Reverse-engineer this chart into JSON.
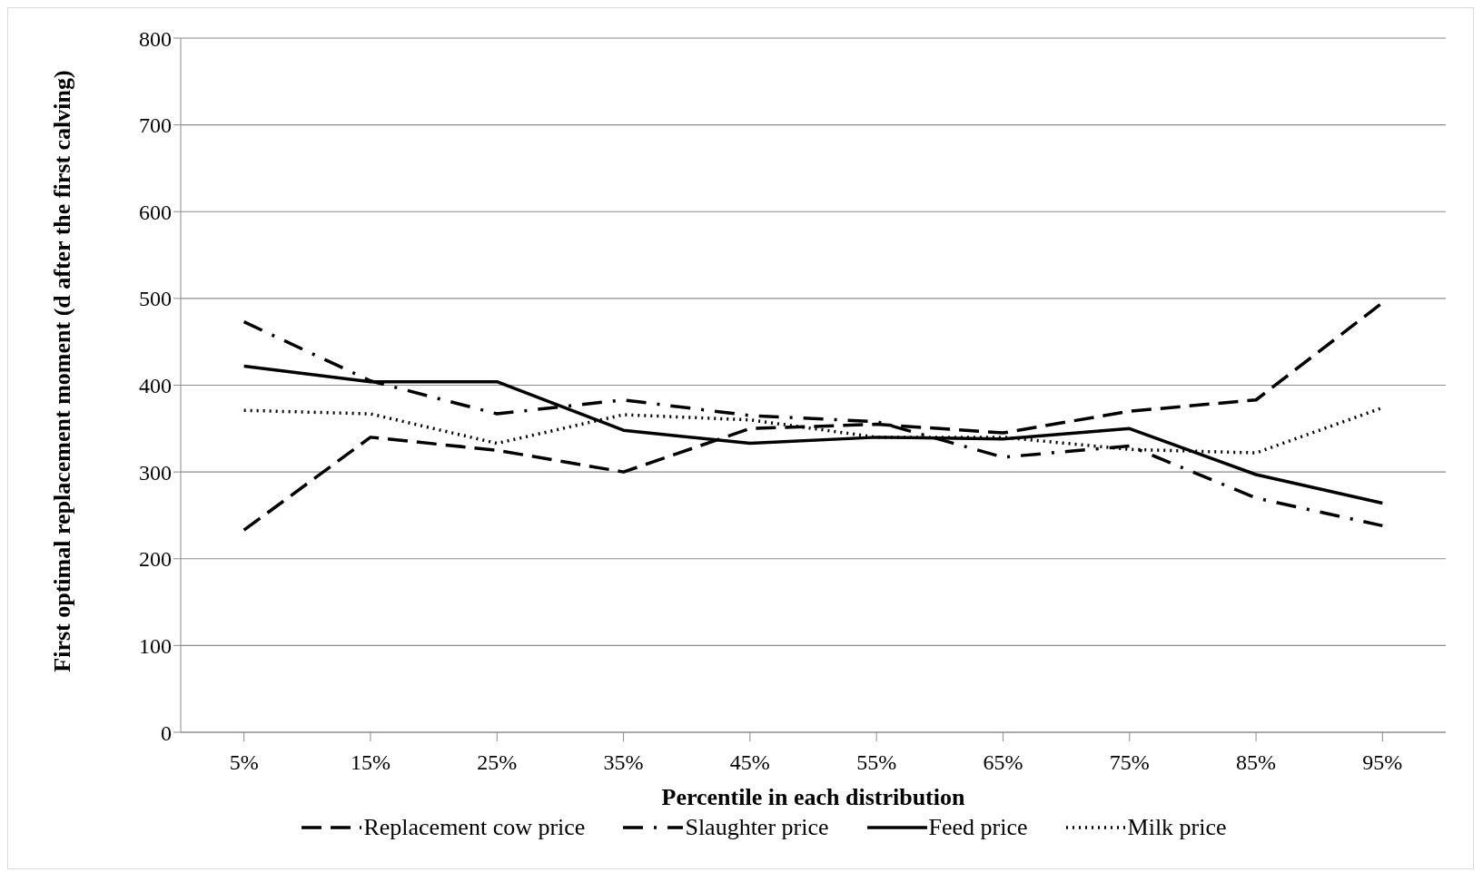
{
  "chart_data": {
    "type": "line",
    "xlabel": "Percentile in each distribution",
    "ylabel": "First optimal replacement moment (d after the first calving)",
    "categories": [
      "5%",
      "15%",
      "25%",
      "35%",
      "45%",
      "55%",
      "65%",
      "75%",
      "85%",
      "95%"
    ],
    "series": [
      {
        "name": "Replacement cow price",
        "color": "#000000",
        "line_style": "dashed",
        "values": [
          233,
          340,
          325,
          300,
          350,
          355,
          345,
          370,
          383,
          495
        ]
      },
      {
        "name": "Slaughter price",
        "color": "#000000",
        "line_style": "dashdot",
        "values": [
          473,
          405,
          367,
          383,
          365,
          358,
          317,
          330,
          270,
          238
        ]
      },
      {
        "name": "Feed price",
        "color": "#000000",
        "line_style": "solid",
        "values": [
          422,
          404,
          404,
          348,
          333,
          340,
          338,
          350,
          297,
          264
        ]
      },
      {
        "name": "Milk price",
        "color": "#000000",
        "line_style": "dotted",
        "values": [
          371,
          367,
          333,
          366,
          360,
          340,
          340,
          326,
          322,
          374
        ]
      }
    ],
    "ylim": [
      0,
      800
    ],
    "yticks": [
      0,
      100,
      200,
      300,
      400,
      500,
      600,
      700,
      800
    ],
    "grid": "y",
    "legend": "bottom",
    "marker": "none"
  }
}
